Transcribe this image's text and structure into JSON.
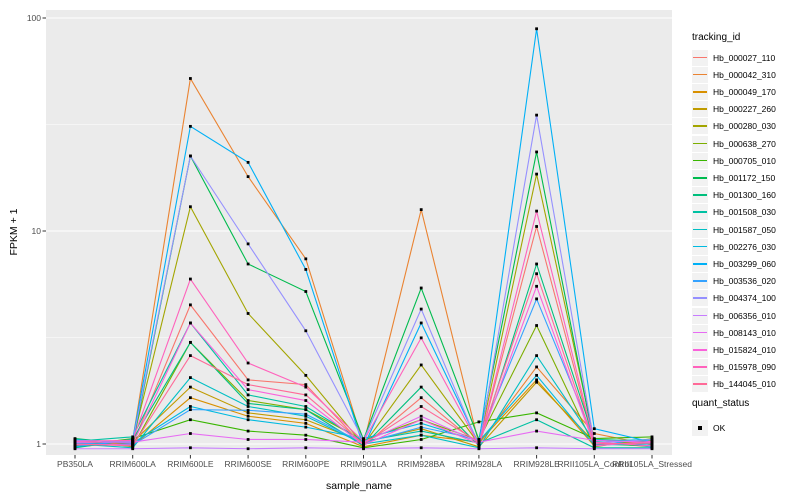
{
  "chart_data": {
    "type": "line",
    "title": "",
    "xlabel": "sample_name",
    "ylabel": "FPKM + 1",
    "y_scale": "log10",
    "y_ticks": [
      "1",
      "10",
      "100"
    ],
    "ylim": [
      0.93,
      115
    ],
    "grid": "major-and-minor-white-on-gray",
    "legend_position": "right",
    "legend_title": "tracking_id",
    "point_color": "#000000",
    "categories": [
      "PB350LA",
      "RRIM600LA",
      "RRIM600LE",
      "RRIM600SE",
      "RRIM600PE",
      "RRIM901LA",
      "RRIM928BA",
      "RRIM928LA",
      "RRIM928LE",
      "RRII105LA_Control",
      "RRII105LA_Stressed"
    ],
    "series": [
      {
        "name": "Hb_000027_110",
        "color": "#F8766D",
        "values": [
          1.02,
          1.0,
          4.5,
          2.0,
          1.9,
          0.98,
          1.65,
          0.99,
          10.5,
          1.0,
          1.01
        ]
      },
      {
        "name": "Hb_000042_310",
        "color": "#EA8331",
        "values": [
          0.99,
          1.04,
          52,
          18,
          7.4,
          1.0,
          12.6,
          1.0,
          2.3,
          1.12,
          0.99
        ]
      },
      {
        "name": "Hb_000049_170",
        "color": "#D89000",
        "values": [
          1.04,
          0.98,
          1.65,
          1.35,
          1.25,
          0.97,
          1.1,
          1.02,
          2.0,
          0.98,
          1.04
        ]
      },
      {
        "name": "Hb_000227_260",
        "color": "#C09B00",
        "values": [
          0.97,
          1.02,
          1.85,
          1.4,
          1.3,
          1.02,
          1.18,
          0.97,
          1.95,
          1.02,
          0.97
        ]
      },
      {
        "name": "Hb_000280_030",
        "color": "#A3A500",
        "values": [
          1.0,
          1.03,
          13,
          4.1,
          2.1,
          0.99,
          2.35,
          1.0,
          18.5,
          1.04,
          1.0
        ]
      },
      {
        "name": "Hb_000638_270",
        "color": "#7CAE00",
        "values": [
          1.05,
          0.97,
          3.0,
          1.6,
          1.45,
          1.04,
          1.3,
          1.04,
          3.6,
          0.97,
          1.06
        ]
      },
      {
        "name": "Hb_000705_010",
        "color": "#39B600",
        "values": [
          0.98,
          1.06,
          1.3,
          1.15,
          1.1,
          0.96,
          1.05,
          1.27,
          1.4,
          1.06,
          1.08
        ]
      },
      {
        "name": "Hb_001172_150",
        "color": "#00BB4E",
        "values": [
          1.06,
          1.0,
          22.5,
          7.0,
          5.2,
          1.05,
          5.4,
          1.05,
          23.5,
          1.0,
          0.98
        ]
      },
      {
        "name": "Hb_001300_160",
        "color": "#00BF7D",
        "values": [
          0.96,
          1.05,
          3.0,
          1.55,
          1.45,
          0.98,
          1.85,
          0.98,
          7.0,
          1.05,
          1.03
        ]
      },
      {
        "name": "Hb_001508_030",
        "color": "#00C1A3",
        "values": [
          1.03,
          1.08,
          3.7,
          1.7,
          1.5,
          1.03,
          1.15,
          1.01,
          1.3,
          0.96,
          0.96
        ]
      },
      {
        "name": "Hb_001587_050",
        "color": "#00BFC4",
        "values": [
          1.0,
          0.96,
          2.05,
          1.5,
          1.35,
          1.0,
          1.1,
          0.96,
          2.6,
          1.03,
          1.05
        ]
      },
      {
        "name": "Hb_002276_030",
        "color": "#00BAE0",
        "values": [
          1.05,
          1.01,
          1.5,
          1.3,
          1.2,
          1.06,
          1.25,
          1.03,
          2.1,
          0.99,
          1.0
        ]
      },
      {
        "name": "Hb_003299_060",
        "color": "#00B0F6",
        "values": [
          0.97,
          1.05,
          31,
          21,
          6.6,
          0.97,
          3.7,
          1.0,
          89,
          1.18,
          1.02
        ]
      },
      {
        "name": "Hb_003536_020",
        "color": "#35A2FF",
        "values": [
          1.01,
          0.99,
          1.45,
          1.44,
          1.38,
          1.01,
          1.2,
          1.05,
          4.8,
          1.05,
          0.97
        ]
      },
      {
        "name": "Hb_004374_100",
        "color": "#9590FF",
        "values": [
          1.04,
          1.03,
          22.5,
          8.7,
          3.4,
          1.04,
          4.3,
          0.98,
          35,
          1.01,
          1.05
        ]
      },
      {
        "name": "Hb_006356_010",
        "color": "#C77CFF",
        "values": [
          0.95,
          0.95,
          0.96,
          0.95,
          0.96,
          0.95,
          0.96,
          0.95,
          0.96,
          0.95,
          0.95
        ]
      },
      {
        "name": "Hb_008143_010",
        "color": "#E76BF3",
        "values": [
          1.02,
          1.02,
          1.12,
          1.05,
          1.05,
          1.02,
          1.35,
          1.02,
          1.15,
          1.04,
          1.02
        ]
      },
      {
        "name": "Hb_015824_010",
        "color": "#FA62DB",
        "values": [
          0.99,
          1.0,
          3.7,
          1.8,
          1.6,
          0.99,
          1.3,
          1.0,
          5.5,
          0.98,
          1.03
        ]
      },
      {
        "name": "Hb_015978_090",
        "color": "#FF62BC",
        "values": [
          1.03,
          1.04,
          5.95,
          2.4,
          1.85,
          1.03,
          3.15,
          0.99,
          12.4,
          1.02,
          0.98
        ]
      },
      {
        "name": "Hb_144045_010",
        "color": "#FF6A98",
        "values": [
          1.0,
          0.98,
          2.6,
          1.9,
          1.7,
          1.0,
          1.5,
          1.02,
          6.3,
          1.0,
          1.01
        ]
      }
    ],
    "quant_status": {
      "title": "quant_status",
      "items": [
        {
          "label": "OK",
          "marker": "black-square"
        }
      ]
    }
  }
}
